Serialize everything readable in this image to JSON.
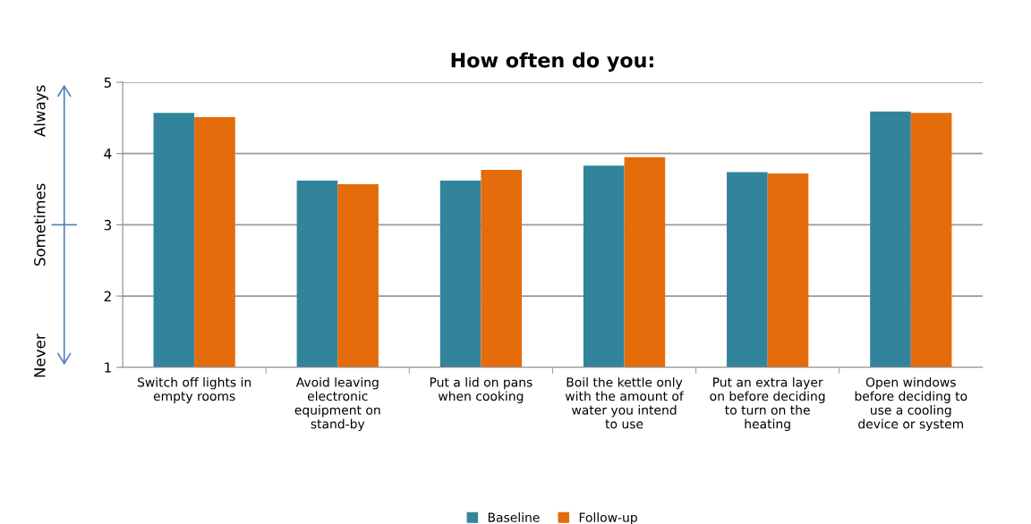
{
  "chart_data": {
    "type": "bar",
    "title": "How often do you:",
    "categories": [
      "Switch off lights in\nempty rooms",
      "Avoid leaving\nelectronic\nequipment on\nstand-by",
      "Put a lid on pans\nwhen cooking",
      "Boil the kettle only\nwith the amount of\nwater you intend\nto use",
      "Put an extra layer\non before deciding\nto turn on the\nheating",
      "Open windows\nbefore deciding to\nuse a cooling\ndevice or system"
    ],
    "series": [
      {
        "name": "Baseline",
        "color": "#31849b",
        "values": [
          4.57,
          3.62,
          3.62,
          3.83,
          3.74,
          4.59
        ]
      },
      {
        "name": "Follow-up",
        "color": "#e46c0a",
        "values": [
          4.51,
          3.57,
          3.77,
          3.95,
          3.72,
          4.57
        ]
      }
    ],
    "ylim": [
      1,
      5
    ],
    "yticks": [
      1,
      2,
      3,
      4,
      5
    ],
    "grid": "y",
    "legend": "bottom",
    "annotations": [
      "Always",
      "Sometimes",
      "Never"
    ]
  }
}
